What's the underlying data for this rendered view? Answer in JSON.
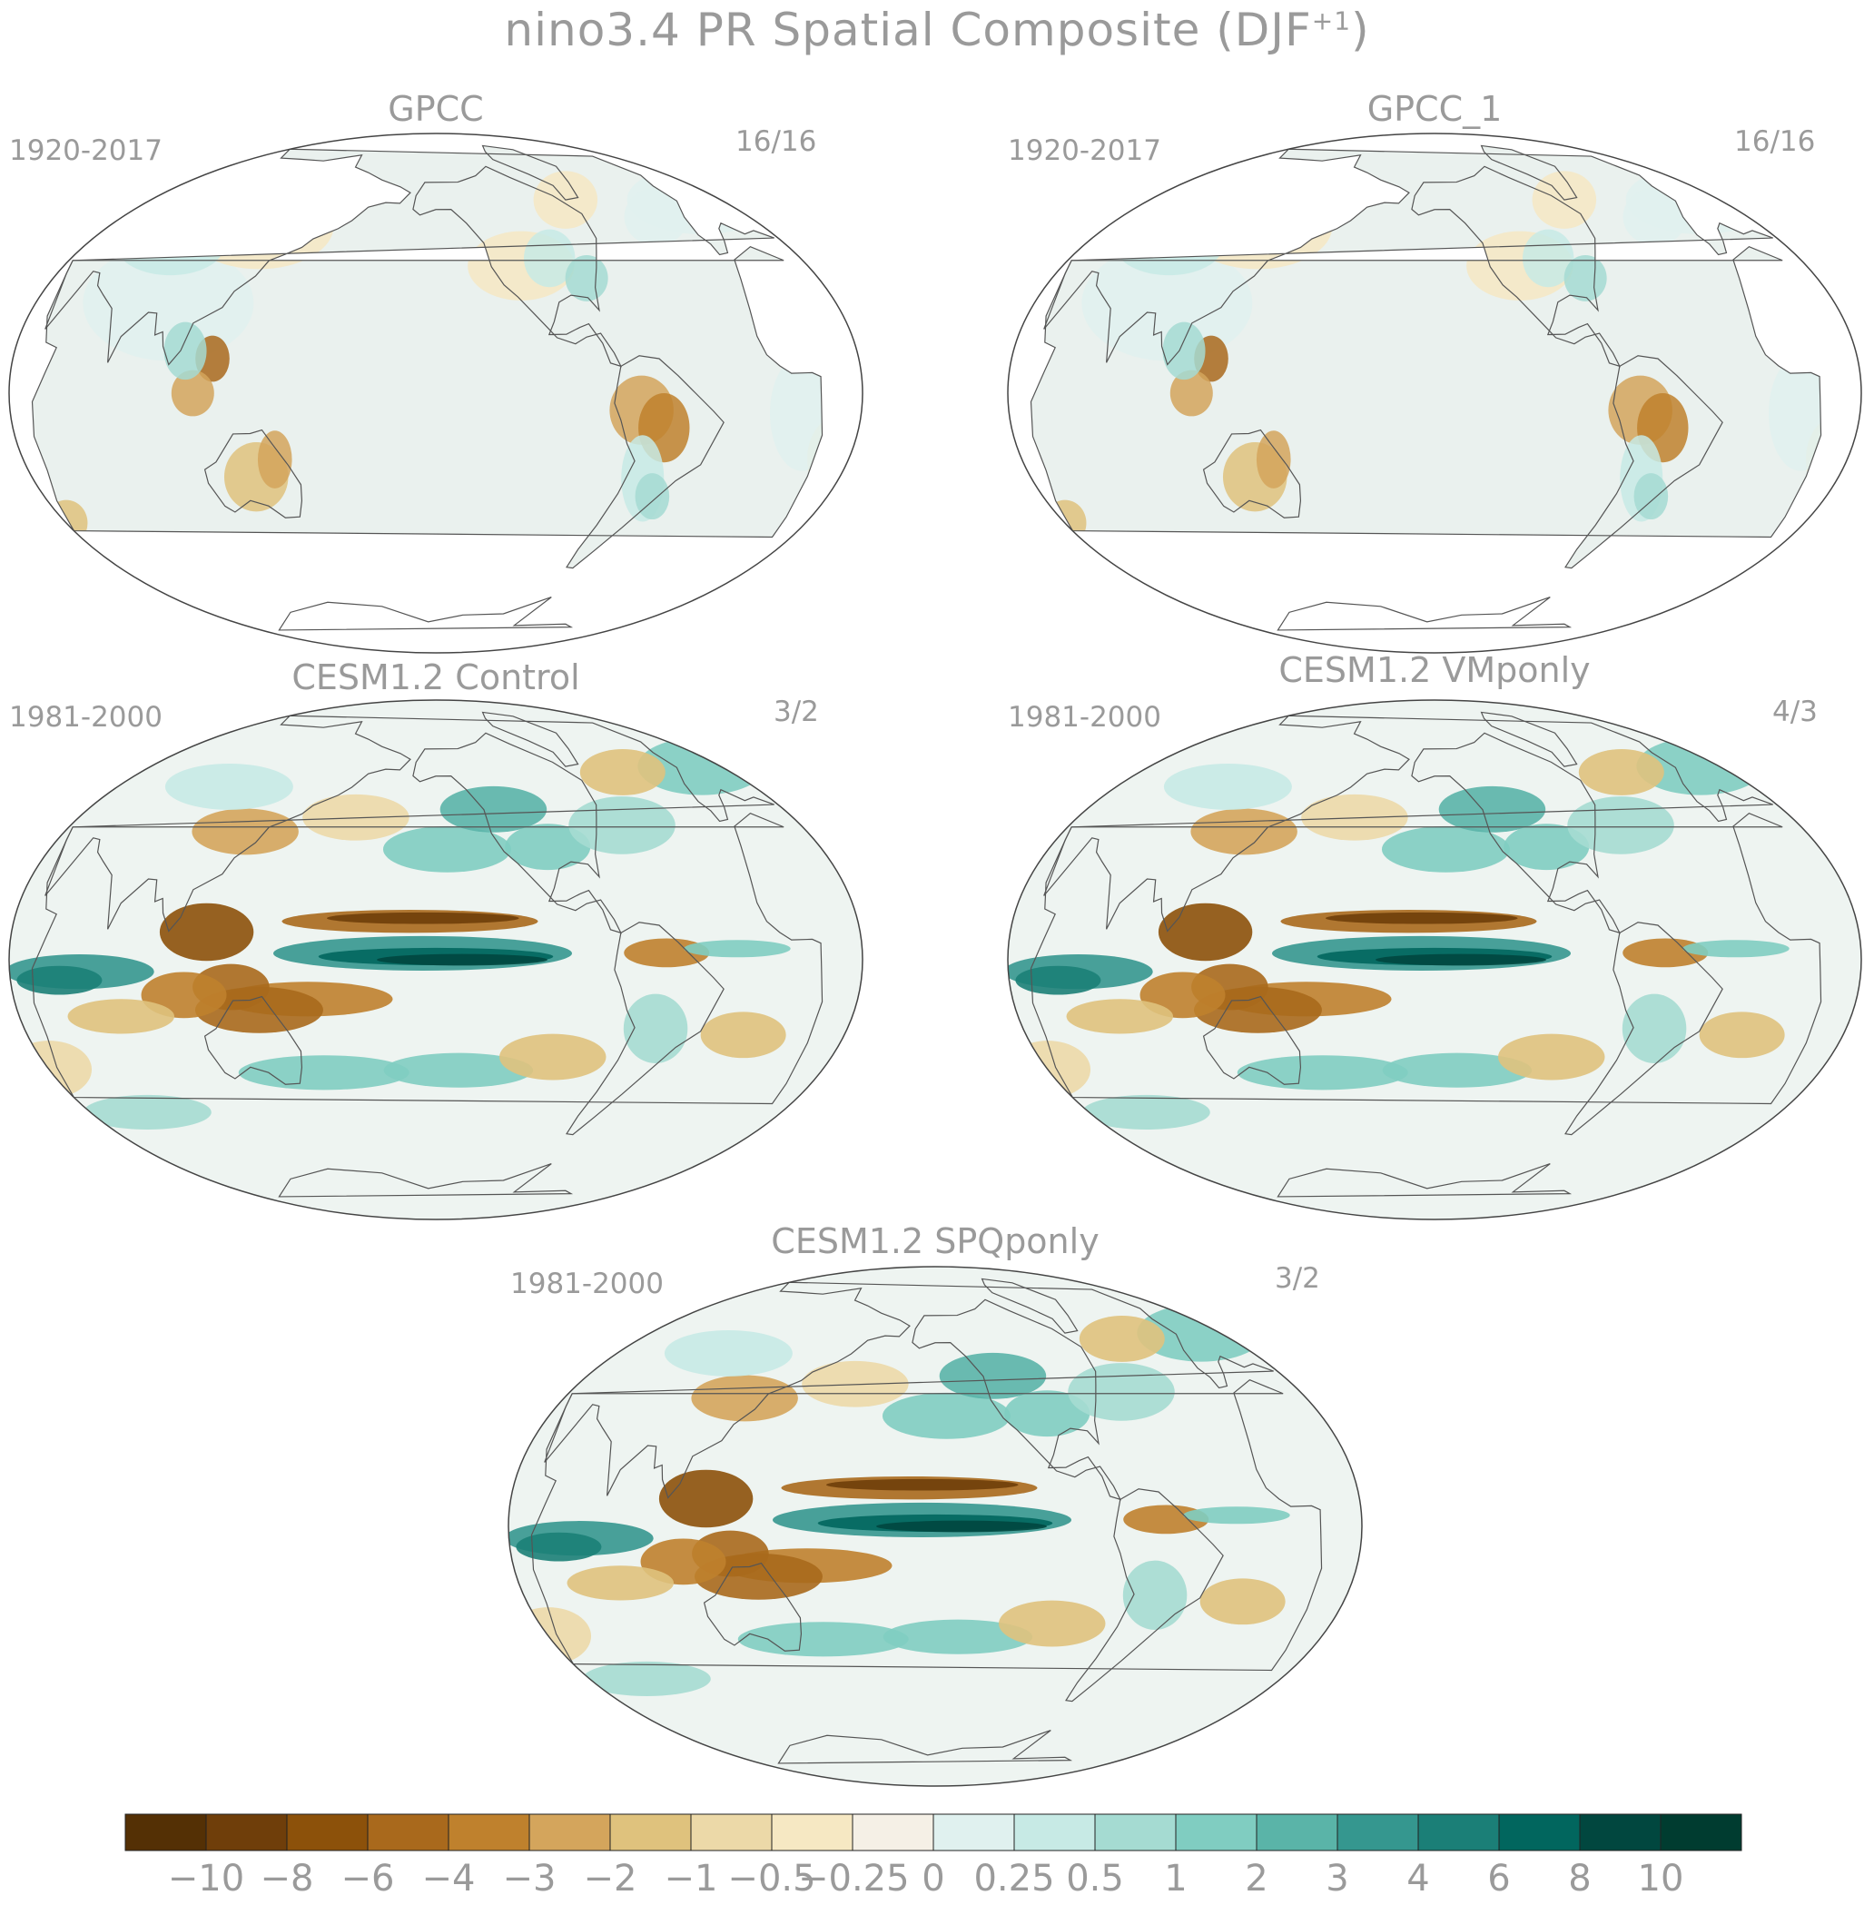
{
  "title": {
    "text": "nino3.4 PR Spatial Composite (DJF",
    "superscript": "+1",
    "close": ")"
  },
  "panels": [
    {
      "name": "GPCC",
      "period": "1920-2017",
      "count": "16/16",
      "style": "obs"
    },
    {
      "name": "GPCC_1",
      "period": "1920-2017",
      "count": "16/16",
      "style": "obs"
    },
    {
      "name": "CESM1.2 Control",
      "period": "1981-2000",
      "count": "3/2",
      "style": "model"
    },
    {
      "name": "CESM1.2 VMponly",
      "period": "1981-2000",
      "count": "4/3",
      "style": "model"
    },
    {
      "name": "CESM1.2 SPQponly",
      "period": "1981-2000",
      "count": "3/2",
      "style": "model"
    }
  ],
  "colorbar": {
    "colors": [
      "#543005",
      "#6f3e0a",
      "#8c510a",
      "#a9691c",
      "#bf812d",
      "#d4a55c",
      "#dfc27d",
      "#ecd9a8",
      "#f6e8c3",
      "#f5f0e6",
      "#e0f1ef",
      "#c7eae5",
      "#a5dbd2",
      "#80cdc1",
      "#5ab4a8",
      "#35978f",
      "#1b7f77",
      "#01665e",
      "#01473f",
      "#003c30"
    ],
    "tick_labels": [
      "−10",
      "−8",
      "−6",
      "−4",
      "−3",
      "−2",
      "−1",
      "−0.5",
      "−0.25",
      "0",
      "0.25",
      "0.5",
      "1",
      "2",
      "3",
      "4",
      "6",
      "8",
      "10"
    ]
  }
}
